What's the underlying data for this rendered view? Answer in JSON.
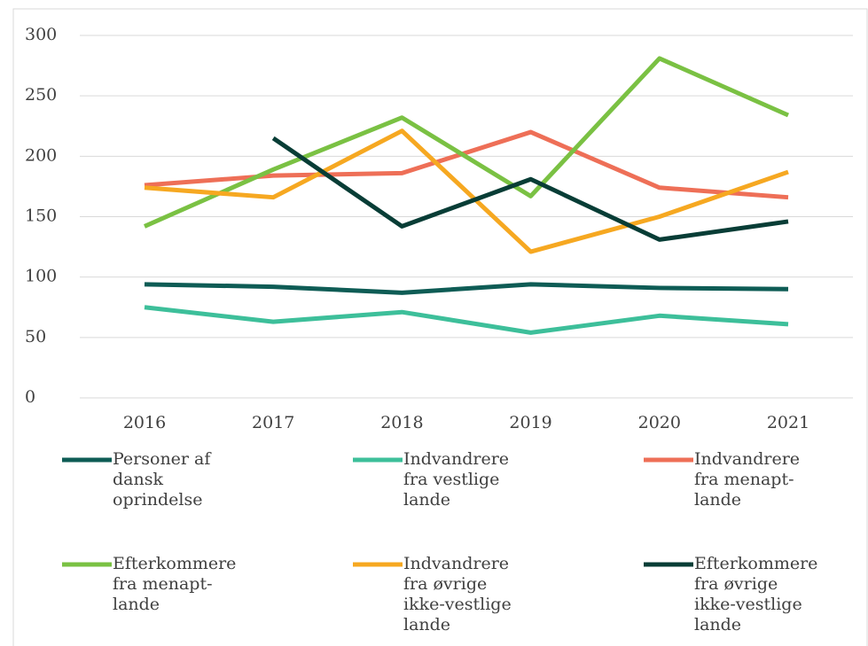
{
  "chart_data": {
    "type": "line",
    "categories": [
      "2016",
      "2017",
      "2018",
      "2019",
      "2020",
      "2021"
    ],
    "series": [
      {
        "name": "Personer af dansk oprindelse",
        "color": "#0e5c55",
        "values": [
          94,
          92,
          87,
          94,
          91,
          90
        ]
      },
      {
        "name": "Indvandrere fra vestlige lande",
        "color": "#3dbf9a",
        "values": [
          75,
          63,
          71,
          54,
          68,
          61
        ]
      },
      {
        "name": "Indvandrere fra menapt-lande",
        "color": "#ee6f57",
        "values": [
          176,
          184,
          186,
          220,
          174,
          166
        ]
      },
      {
        "name": "Efterkommere fra menapt-lande",
        "color": "#7ac143",
        "values": [
          142,
          189,
          232,
          167,
          281,
          234
        ]
      },
      {
        "name": "Indvandrere fra øvrige ikke-vestlige lande",
        "color": "#f6a821",
        "values": [
          174,
          166,
          221,
          121,
          150,
          187
        ]
      },
      {
        "name": "Efterkommere fra øvrige ikke-vestlige lande",
        "color": "#083d36",
        "values": [
          null,
          215,
          142,
          181,
          131,
          146
        ]
      }
    ],
    "ylim": [
      0,
      300
    ],
    "yticks": [
      0,
      50,
      100,
      150,
      200,
      250,
      300
    ],
    "grid": true,
    "legend": "bottom"
  }
}
